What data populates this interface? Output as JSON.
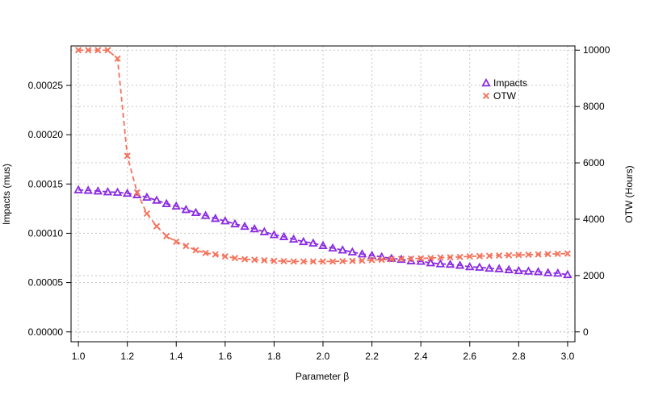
{
  "chart_data": {
    "type": "scatter",
    "xlabel": "Parameter β",
    "ylabel_left": "Impacts  (mus)",
    "ylabel_right": "OTW (Hours)",
    "x_ticks": [
      "1.0",
      "1.2",
      "1.4",
      "1.6",
      "1.8",
      "2.0",
      "2.2",
      "2.4",
      "2.6",
      "2.8",
      "3.0"
    ],
    "y_left_ticks": [
      "0.00000",
      "0.00005",
      "0.00010",
      "0.00015",
      "0.00020",
      "0.00025"
    ],
    "y_right_ticks": [
      "0",
      "2000",
      "4000",
      "6000",
      "8000",
      "10000"
    ],
    "xlim": [
      0.97,
      3.03
    ],
    "ylim_left": [
      -1e-05,
      0.00029
    ],
    "ylim_right": [
      -350,
      10150
    ],
    "grid": true,
    "legend_position": "top-right",
    "x": [
      1.0,
      1.04,
      1.08,
      1.12,
      1.16,
      1.2,
      1.24,
      1.28,
      1.32,
      1.36,
      1.4,
      1.44,
      1.48,
      1.52,
      1.56,
      1.6,
      1.64,
      1.68,
      1.72,
      1.76,
      1.8,
      1.84,
      1.88,
      1.92,
      1.96,
      2.0,
      2.04,
      2.08,
      2.12,
      2.16,
      2.2,
      2.24,
      2.28,
      2.32,
      2.36,
      2.4,
      2.44,
      2.48,
      2.52,
      2.56,
      2.6,
      2.64,
      2.68,
      2.72,
      2.76,
      2.8,
      2.84,
      2.88,
      2.92,
      2.96,
      3.0
    ],
    "series": [
      {
        "name": "Impacts",
        "axis": "left",
        "color": "#8a2be2",
        "marker": "triangle",
        "values": [
          0.000144,
          0.0001435,
          0.0001428,
          0.000142,
          0.0001415,
          0.0001405,
          0.000139,
          0.0001365,
          0.0001335,
          0.00013,
          0.0001275,
          0.000124,
          0.000121,
          0.000118,
          0.000115,
          0.0001125,
          0.0001095,
          0.000107,
          0.0001045,
          0.0001015,
          9.85e-05,
          9.65e-05,
          9.4e-05,
          9.15e-05,
          9e-05,
          8.75e-05,
          8.5e-05,
          8.3e-05,
          8.1e-05,
          7.9e-05,
          7.75e-05,
          7.6e-05,
          7.45e-05,
          7.35e-05,
          7.2e-05,
          7.15e-05,
          7e-05,
          6.9e-05,
          6.85e-05,
          6.75e-05,
          6.6e-05,
          6.55e-05,
          6.45e-05,
          6.4e-05,
          6.3e-05,
          6.2e-05,
          6.15e-05,
          6.1e-05,
          6e-05,
          5.95e-05,
          5.8e-05
        ]
      },
      {
        "name": "OTW",
        "axis": "right",
        "color": "#f4715a",
        "marker": "cross",
        "values": [
          10000,
          10000,
          10000,
          10000,
          9700,
          6250,
          4950,
          4200,
          3750,
          3400,
          3200,
          3050,
          2900,
          2800,
          2750,
          2680,
          2620,
          2580,
          2560,
          2540,
          2520,
          2510,
          2500,
          2500,
          2500,
          2500,
          2500,
          2510,
          2520,
          2530,
          2550,
          2560,
          2580,
          2590,
          2600,
          2610,
          2620,
          2640,
          2650,
          2660,
          2680,
          2690,
          2700,
          2710,
          2720,
          2730,
          2740,
          2750,
          2760,
          2770,
          2780
        ]
      }
    ]
  }
}
